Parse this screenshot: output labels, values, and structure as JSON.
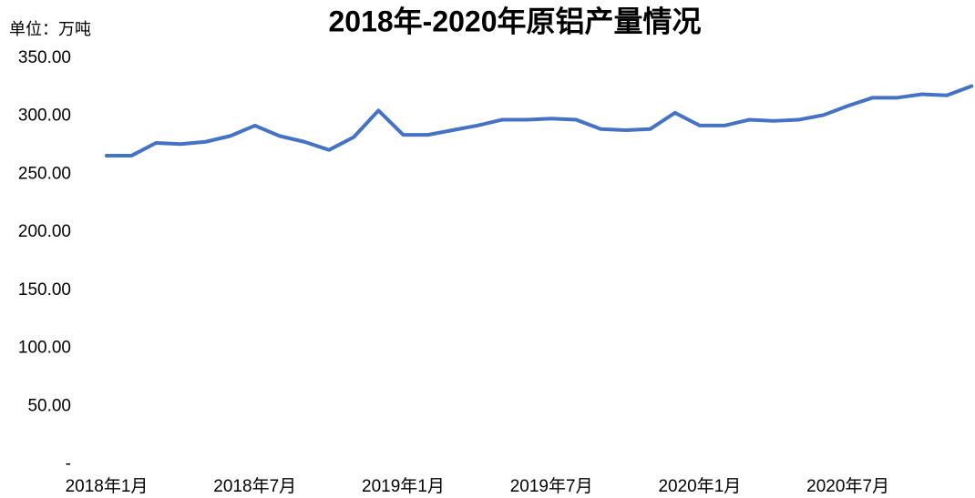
{
  "chart_data": {
    "type": "line",
    "title": "2018年-2020年原铝产量情况",
    "unit_label": "单位：万吨",
    "categories": [
      "2018年1月",
      null,
      null,
      null,
      null,
      null,
      "2018年7月",
      null,
      null,
      null,
      null,
      null,
      "2019年1月",
      null,
      null,
      null,
      null,
      null,
      "2019年7月",
      null,
      null,
      null,
      null,
      null,
      "2020年1月",
      null,
      null,
      null,
      null,
      null,
      "2020年7月",
      null,
      null,
      null,
      null,
      null
    ],
    "series": [
      {
        "name": "原铝产量",
        "color": "#4472c4",
        "values": [
          266,
          266,
          277,
          276,
          278,
          283,
          292,
          283,
          278,
          271,
          282,
          305,
          284,
          284,
          288,
          292,
          297,
          297,
          298,
          297,
          289,
          288,
          289,
          303,
          292,
          292,
          297,
          296,
          297,
          301,
          309,
          316,
          316,
          319,
          318,
          326
        ]
      }
    ],
    "ylim": [
      0,
      350
    ],
    "yticks": [
      {
        "value": 0,
        "label": "-"
      },
      {
        "value": 50,
        "label": "50.00"
      },
      {
        "value": 100,
        "label": "100.00"
      },
      {
        "value": 150,
        "label": "150.00"
      },
      {
        "value": 200,
        "label": "200.00"
      },
      {
        "value": 250,
        "label": "250.00"
      },
      {
        "value": 300,
        "label": "300.00"
      },
      {
        "value": 350,
        "label": "350.00"
      }
    ],
    "grid": false
  }
}
